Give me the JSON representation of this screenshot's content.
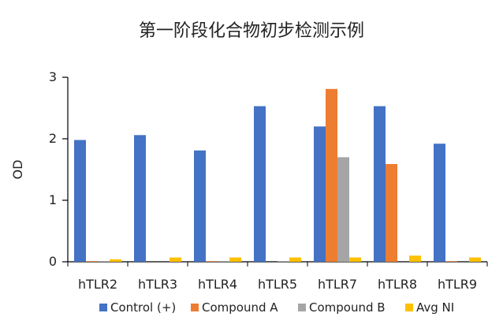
{
  "chart_data": {
    "type": "bar",
    "title": "第一阶段化合物初步检测示例",
    "xlabel": "",
    "ylabel": "OD",
    "ylim": [
      0,
      3
    ],
    "yticks": [
      0,
      1,
      2,
      3
    ],
    "categories": [
      "hTLR2",
      "hTLR3",
      "hTLR4",
      "hTLR5",
      "hTLR7",
      "hTLR8",
      "hTLR9"
    ],
    "series": [
      {
        "name": "Control (+)",
        "color": "#4472c4",
        "values": [
          1.98,
          2.06,
          1.81,
          2.53,
          2.2,
          2.53,
          1.92
        ]
      },
      {
        "name": "Compound A",
        "color": "#ed7d31",
        "values": [
          0.01,
          0.0,
          0.01,
          0.0,
          2.81,
          1.59,
          0.01
        ]
      },
      {
        "name": "Compound B",
        "color": "#a5a5a5",
        "values": [
          0.01,
          0.0,
          0.01,
          0.01,
          1.7,
          0.0,
          0.0
        ]
      },
      {
        "name": "Avg NI",
        "color": "#ffc000",
        "values": [
          0.04,
          0.07,
          0.07,
          0.07,
          0.07,
          0.1,
          0.07
        ]
      }
    ],
    "grid": false,
    "legend_position": "bottom",
    "axis_color": "#000000"
  }
}
